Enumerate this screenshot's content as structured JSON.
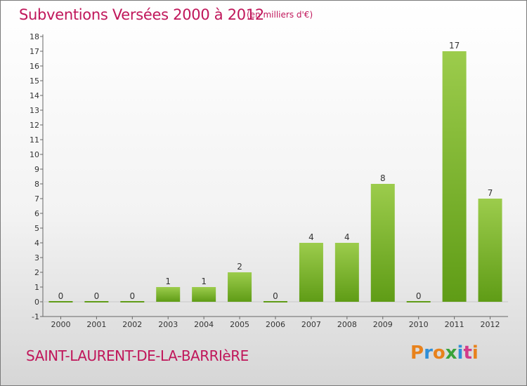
{
  "title": "Subventions Versées 2000 à 2012",
  "subtitle": "(en milliers d'€)",
  "commune": "SAINT-LAURENT-DE-LA-BARRIèRE",
  "logo": {
    "letters": [
      "P",
      "r",
      "o",
      "x",
      "i",
      "t",
      "i"
    ],
    "colors": [
      "#e8821c",
      "#2f8fd8",
      "#e8821c",
      "#3aa33a",
      "#2f8fd8",
      "#d23b8a",
      "#e8821c"
    ]
  },
  "colors": {
    "bar_top": "#9ccc4c",
    "bar_bottom": "#5f9c16",
    "title": "#c0165a",
    "axis": "#666666"
  },
  "chart_data": {
    "type": "bar",
    "categories": [
      "2000",
      "2001",
      "2002",
      "2003",
      "2004",
      "2005",
      "2006",
      "2007",
      "2008",
      "2009",
      "2010",
      "2011",
      "2012"
    ],
    "values": [
      0,
      0,
      0,
      1,
      1,
      2,
      0,
      4,
      4,
      8,
      0,
      17,
      7
    ],
    "data_labels": [
      "0",
      "0",
      "0",
      "1",
      "1",
      "2",
      "0",
      "4",
      "4",
      "8",
      "0",
      "17",
      "7"
    ],
    "y_ticks": [
      "-1",
      "0",
      "1",
      "2",
      "3",
      "4",
      "5",
      "6",
      "7",
      "8",
      "9",
      "10",
      "11",
      "12",
      "13",
      "14",
      "15",
      "16",
      "17",
      "18"
    ],
    "ylim": [
      -1,
      18
    ],
    "grid": false,
    "title": "Subventions Versées 2000 à 2012"
  }
}
